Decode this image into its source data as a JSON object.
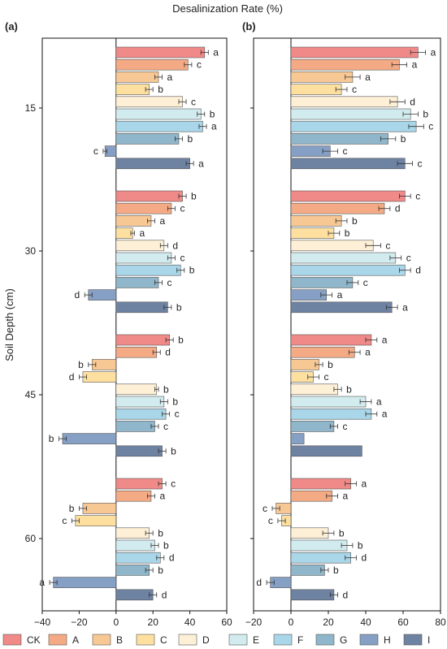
{
  "title": "Desalinization Rate (%)",
  "ylabel": "Soil Depth (cm)",
  "colors": {
    "CK": "#f08a88",
    "A": "#f4aa84",
    "B": "#f8c894",
    "C": "#fde0a0",
    "D": "#fdf0d6",
    "E": "#d2ebee",
    "F": "#a9d6e8",
    "G": "#8fb6ca",
    "H": "#869fc4",
    "I": "#6e82a2"
  },
  "legend": [
    "CK",
    "A",
    "B",
    "C",
    "D",
    "E",
    "F",
    "G",
    "H",
    "I"
  ],
  "chart_data": [
    {
      "panel": "(a)",
      "type": "bar",
      "orientation": "horizontal",
      "xlim": [
        -40,
        60
      ],
      "xticks": [
        -40,
        -20,
        0,
        20,
        40,
        60
      ],
      "groups": [
        "15",
        "30",
        "45",
        "60"
      ],
      "series": [
        "CK",
        "A",
        "B",
        "C",
        "D",
        "E",
        "F",
        "G",
        "H",
        "I"
      ],
      "values": [
        [
          48,
          39,
          23,
          18,
          36,
          46,
          47,
          34,
          -6,
          40
        ],
        [
          36,
          30,
          19,
          9,
          26,
          30,
          35,
          23,
          -15,
          28
        ],
        [
          29,
          22,
          -13,
          -18,
          22,
          26,
          27,
          21,
          -29,
          25
        ],
        [
          25,
          19,
          -18,
          -22,
          18,
          21,
          24,
          18,
          -34,
          20
        ]
      ],
      "errors": [
        [
          2,
          2,
          2,
          2,
          2,
          2,
          2,
          2,
          1,
          2
        ],
        [
          2,
          2,
          2,
          1,
          2,
          2,
          2,
          2,
          2,
          2
        ],
        [
          2,
          2,
          2,
          2,
          1,
          2,
          2,
          2,
          2,
          2
        ],
        [
          2,
          2,
          2,
          2,
          2,
          2,
          2,
          2,
          2,
          2
        ]
      ],
      "labels": [
        [
          "a",
          "c",
          "a",
          "b",
          "c",
          "b",
          "a",
          "b",
          "c",
          "a"
        ],
        [
          "b",
          "c",
          "a",
          "a",
          "d",
          "c",
          "b",
          "c",
          "d",
          "b"
        ],
        [
          "b",
          "d",
          "b",
          "d",
          "b",
          "b",
          "c",
          "c",
          "b",
          "b"
        ],
        [
          "c",
          "a",
          "b",
          "c",
          "b",
          "b",
          "d",
          "b",
          "a",
          "d"
        ]
      ]
    },
    {
      "panel": "(b)",
      "type": "bar",
      "orientation": "horizontal",
      "xlim": [
        -20,
        80
      ],
      "xticks": [
        -20,
        0,
        20,
        40,
        60,
        80
      ],
      "groups": [
        "15",
        "30",
        "45",
        "60"
      ],
      "series": [
        "CK",
        "A",
        "B",
        "C",
        "D",
        "E",
        "F",
        "G",
        "H",
        "I"
      ],
      "values": [
        [
          68,
          58,
          33,
          27,
          57,
          64,
          67,
          52,
          21,
          61
        ],
        [
          61,
          50,
          27,
          23,
          44,
          56,
          61,
          33,
          19,
          54
        ],
        [
          43,
          34,
          15,
          12,
          25,
          40,
          43,
          23,
          7,
          38
        ],
        [
          32,
          22,
          -8,
          -5,
          20,
          30,
          32,
          18,
          -11,
          23
        ]
      ],
      "errors": [
        [
          4,
          4,
          4,
          3,
          4,
          4,
          4,
          4,
          4,
          4
        ],
        [
          3,
          3,
          3,
          3,
          4,
          3,
          3,
          3,
          3,
          3
        ],
        [
          3,
          3,
          2,
          3,
          2,
          3,
          3,
          2,
          0,
          0
        ],
        [
          3,
          3,
          2,
          2,
          3,
          3,
          3,
          2,
          2,
          2
        ]
      ],
      "labels": [
        [
          "a",
          "a",
          "a",
          "c",
          "d",
          "b",
          "c",
          "b",
          "c",
          "c"
        ],
        [
          "c",
          "d",
          "b",
          "b",
          "c",
          "c",
          "d",
          "c",
          "a",
          "a"
        ],
        [
          "a",
          "a",
          "b",
          "c",
          "b",
          "a",
          "a",
          "c",
          "",
          ""
        ],
        [
          "a",
          "a",
          "c",
          "c",
          "b",
          "b",
          "d",
          "b",
          "d",
          "d"
        ]
      ]
    }
  ]
}
